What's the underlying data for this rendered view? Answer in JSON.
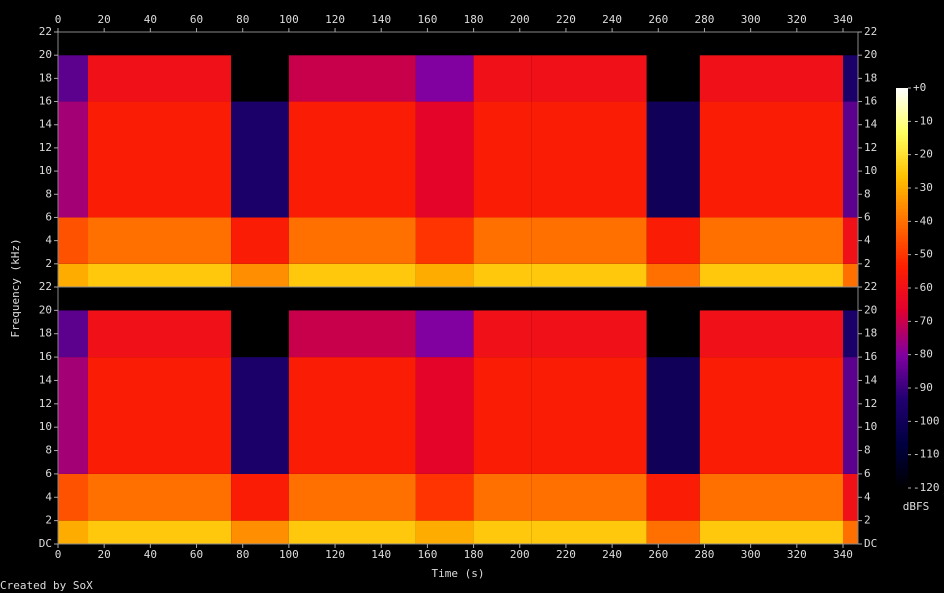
{
  "chart_data": [
    {
      "type": "spectrogram",
      "ylabel": "Frequency (kHz)",
      "x": [
        0,
        13,
        75,
        100,
        155,
        180,
        205,
        255,
        278,
        340,
        346.5
      ],
      "y": [
        0,
        2,
        6,
        16,
        20,
        22
      ],
      "values": [
        [
          -30,
          -25,
          -35,
          -25,
          -30,
          -25,
          -25,
          -40,
          -25,
          -40
        ],
        [
          -45,
          -40,
          -55,
          -40,
          -50,
          -40,
          -40,
          -55,
          -40,
          -60
        ],
        [
          -75,
          -55,
          -95,
          -55,
          -65,
          -55,
          -55,
          -100,
          -55,
          -85
        ],
        [
          -85,
          -60,
          -120,
          -70,
          -80,
          -60,
          -60,
          -120,
          -60,
          -95
        ],
        [
          -120,
          -120,
          -120,
          -120,
          -120,
          -120,
          -120,
          -120,
          -120,
          -120
        ]
      ],
      "xlim": [
        0,
        346.5
      ],
      "xticks": [
        0,
        20,
        40,
        60,
        80,
        100,
        120,
        140,
        160,
        180,
        200,
        220,
        240,
        260,
        280,
        300,
        320,
        340
      ],
      "ylim": [
        0,
        22
      ],
      "yticks": [
        2,
        4,
        6,
        8,
        10,
        12,
        14,
        16,
        18,
        20,
        22
      ]
    },
    {
      "type": "spectrogram",
      "xlabel": "Time (s)",
      "x": [
        0,
        13,
        75,
        100,
        155,
        180,
        205,
        255,
        278,
        340,
        346.5
      ],
      "y": [
        0,
        2,
        6,
        16,
        20,
        22
      ],
      "values": [
        [
          -30,
          -25,
          -35,
          -25,
          -30,
          -25,
          -25,
          -40,
          -25,
          -40
        ],
        [
          -45,
          -40,
          -55,
          -40,
          -50,
          -40,
          -40,
          -55,
          -40,
          -60
        ],
        [
          -75,
          -55,
          -95,
          -55,
          -65,
          -55,
          -55,
          -100,
          -55,
          -85
        ],
        [
          -85,
          -60,
          -120,
          -70,
          -80,
          -60,
          -60,
          -120,
          -60,
          -95
        ],
        [
          -120,
          -120,
          -120,
          -120,
          -120,
          -120,
          -120,
          -120,
          -120,
          -120
        ]
      ],
      "xlim": [
        0,
        346.5
      ],
      "xticks": [
        0,
        20,
        40,
        60,
        80,
        100,
        120,
        140,
        160,
        180,
        200,
        220,
        240,
        260,
        280,
        300,
        320,
        340
      ],
      "ylim": [
        0,
        22
      ],
      "yticks": [
        {
          "value": 0,
          "label": "DC"
        },
        2,
        4,
        6,
        8,
        10,
        12,
        14,
        16,
        18,
        20,
        22
      ]
    }
  ],
  "colorbar": {
    "label": "dBFS",
    "lim": [
      -120,
      0
    ],
    "ticks": [
      {
        "value": 0,
        "label": "+0"
      },
      -10,
      -20,
      -30,
      -40,
      -50,
      -60,
      -70,
      -80,
      -90,
      -100,
      -110,
      -120
    ],
    "colors": [
      "#000000",
      "#000040",
      "#200070",
      "#8000a0",
      "#e00030",
      "#ff2000",
      "#ff7000",
      "#ffc000",
      "#ffff60",
      "#ffffff"
    ]
  },
  "credit": "Created by SoX"
}
